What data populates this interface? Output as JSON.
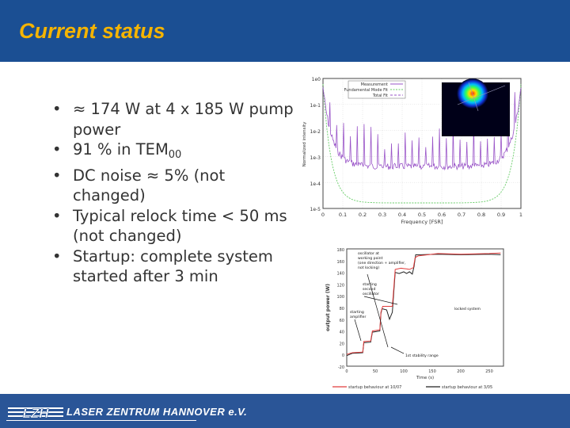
{
  "slide": {
    "title": "Current status",
    "bullets": [
      {
        "text": "≈ 174 W at 4 x 185 W pump power"
      },
      {
        "text": "91 % in TEM",
        "sub": "00"
      },
      {
        "text": "DC noise ≈ 5% (not changed)"
      },
      {
        "text": "Typical relock time < 50 ms (not changed)"
      },
      {
        "text": "Startup: complete system started after 3 min"
      }
    ]
  },
  "figure1": {
    "ylabel": "Normalized intensity",
    "xlabel": "Frequency [FSR]",
    "yticks": [
      "1e0",
      "1e-1",
      "1e-2",
      "1e-3",
      "1e-4",
      "1e-5"
    ],
    "xticks": [
      "0",
      "0.1",
      "0.2",
      "0.3",
      "0.4",
      "0.5",
      "0.6",
      "0.7",
      "0.8",
      "0.9",
      "1"
    ],
    "legend": [
      "Measurement",
      "Fundamental Mode Fit",
      "Total Fit"
    ]
  },
  "figure2": {
    "ylabel": "output power (W)",
    "xlabel": "Time (s)",
    "yticks": [
      "180",
      "160",
      "140",
      "120",
      "100",
      "80",
      "60",
      "40",
      "20",
      "0",
      "-20"
    ],
    "xticks": [
      "0",
      "50",
      "100",
      "150",
      "200",
      "250"
    ],
    "annotations": [
      "oscillator at",
      "working point",
      "(one direction + amplifier,",
      "not locking)",
      "starting",
      "second",
      "oscillator",
      "starting",
      "amplifier",
      "1st stability range",
      "locked system"
    ],
    "legend": [
      "startup behaviour at 10/07",
      "startup behaviour at 3/05"
    ]
  },
  "colors": {
    "header": "#1b4f93",
    "title": "#f5b400",
    "footer": "#2a5597",
    "series_measurement": "#9a55c8",
    "series_fit": "#66cc66",
    "series_1007": "#e03c3c",
    "series_0305": "#222222"
  },
  "footer": {
    "logo_text": "LZH",
    "org": "LASER ZENTRUM HANNOVER e.V."
  }
}
